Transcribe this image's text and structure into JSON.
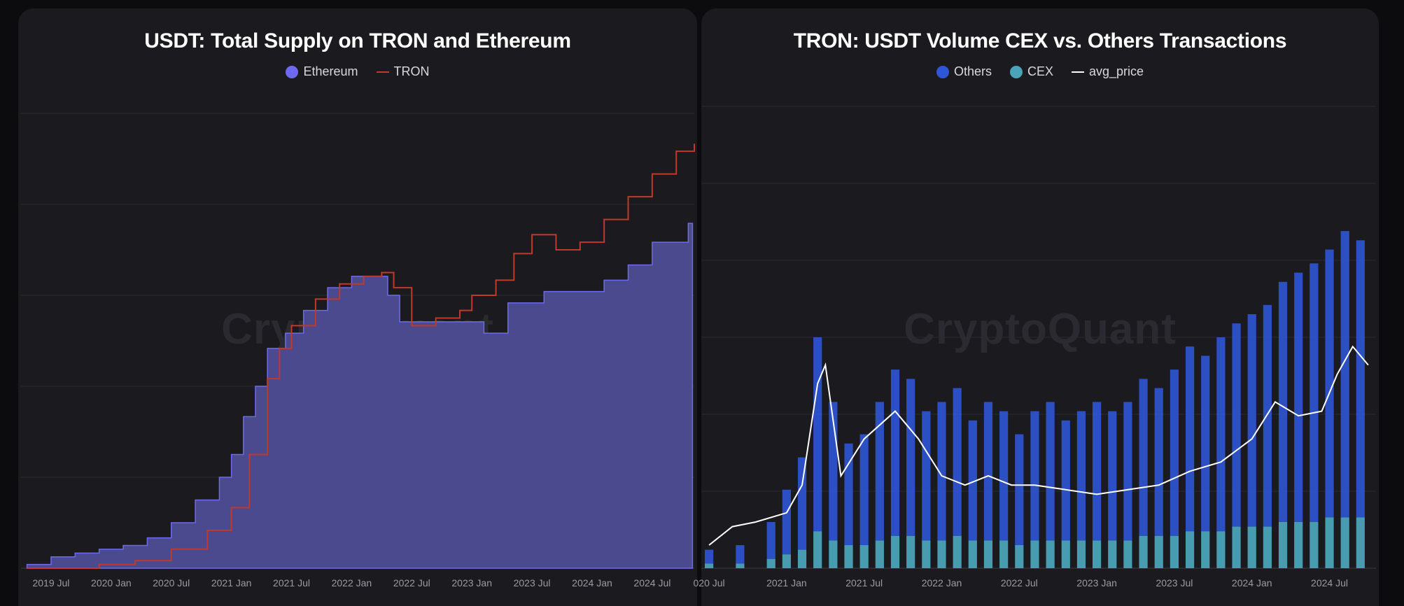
{
  "watermark": "CryptoQuant",
  "chart_data": [
    {
      "type": "area",
      "title": "USDT: Total Supply on TRON and Ethereum",
      "xlabel": "",
      "ylabel": "",
      "x_ticks": [
        "2019 Jul",
        "2020 Jan",
        "2020 Jul",
        "2021 Jan",
        "2021 Jul",
        "2022 Jan",
        "2022 Jul",
        "2023 Jan",
        "2023 Jul",
        "2024 Jan",
        "2024 Jul"
      ],
      "grid": true,
      "legend_placement": "top-center",
      "colors": {
        "Ethereum": "#5b56c8",
        "Ethereum_fill": "#4b4a8f",
        "TRON": "#c0392b"
      },
      "series": [
        {
          "name": "Ethereum",
          "kind": "area",
          "x": [
            2019.3,
            2019.5,
            2019.7,
            2019.9,
            2020.1,
            2020.3,
            2020.5,
            2020.7,
            2020.9,
            2021.0,
            2021.1,
            2021.2,
            2021.3,
            2021.45,
            2021.6,
            2021.8,
            2022.0,
            2022.2,
            2022.3,
            2022.4,
            2022.6,
            2022.8,
            2023.0,
            2023.1,
            2023.3,
            2023.6,
            2023.9,
            2024.1,
            2024.3,
            2024.5,
            2024.8
          ],
          "values": [
            1,
            3,
            4,
            5,
            6,
            8,
            12,
            18,
            24,
            30,
            40,
            48,
            58,
            62,
            68,
            74,
            77,
            77,
            72,
            65,
            65,
            65,
            65,
            62,
            70,
            73,
            73,
            76,
            80,
            86,
            91
          ]
        },
        {
          "name": "TRON",
          "kind": "line",
          "x": [
            2019.3,
            2019.6,
            2019.9,
            2020.2,
            2020.5,
            2020.8,
            2021.0,
            2021.15,
            2021.3,
            2021.4,
            2021.5,
            2021.7,
            2021.9,
            2022.1,
            2022.25,
            2022.35,
            2022.5,
            2022.7,
            2022.9,
            2023.0,
            2023.2,
            2023.35,
            2023.5,
            2023.7,
            2023.9,
            2024.1,
            2024.3,
            2024.5,
            2024.7,
            2024.85
          ],
          "values": [
            0,
            0,
            1,
            2,
            5,
            10,
            16,
            30,
            50,
            58,
            64,
            71,
            75,
            77,
            78,
            74,
            64,
            66,
            68,
            72,
            76,
            83,
            88,
            84,
            86,
            92,
            98,
            104,
            110,
            112
          ]
        }
      ],
      "ylim": [
        0,
        120
      ]
    },
    {
      "type": "bar",
      "title": "TRON: USDT Volume CEX vs. Others Transactions",
      "xlabel": "",
      "ylabel": "",
      "x_ticks": [
        "020 Jul",
        "2021 Jan",
        "2021 Jul",
        "2022 Jan",
        "2022 Jul",
        "2023 Jan",
        "2023 Jul",
        "2024 Jan",
        "2024 Jul"
      ],
      "grid": true,
      "legend_placement": "top-center",
      "colors": {
        "Others": "#2f56d6",
        "CEX": "#4aa3b8",
        "avg_price": "#ffffff"
      },
      "series": [
        {
          "name": "Others",
          "kind": "stacked-bar",
          "x": [
            2020.5,
            2020.7,
            2020.9,
            2021.0,
            2021.1,
            2021.2,
            2021.3,
            2021.4,
            2021.5,
            2021.6,
            2021.7,
            2021.8,
            2021.9,
            2022.0,
            2022.1,
            2022.2,
            2022.3,
            2022.4,
            2022.5,
            2022.6,
            2022.7,
            2022.8,
            2022.9,
            2023.0,
            2023.1,
            2023.2,
            2023.3,
            2023.4,
            2023.5,
            2023.6,
            2023.7,
            2023.8,
            2023.9,
            2024.0,
            2024.1,
            2024.2,
            2024.3,
            2024.4,
            2024.5,
            2024.6,
            2024.7
          ],
          "values": [
            3,
            4,
            8,
            14,
            20,
            42,
            30,
            22,
            24,
            30,
            36,
            34,
            28,
            30,
            32,
            26,
            30,
            28,
            24,
            28,
            30,
            26,
            28,
            30,
            28,
            30,
            34,
            32,
            36,
            40,
            38,
            42,
            44,
            46,
            48,
            52,
            54,
            56,
            58,
            62,
            60
          ]
        },
        {
          "name": "CEX",
          "kind": "stacked-bar",
          "x": [
            2020.5,
            2020.7,
            2020.9,
            2021.0,
            2021.1,
            2021.2,
            2021.3,
            2021.4,
            2021.5,
            2021.6,
            2021.7,
            2021.8,
            2021.9,
            2022.0,
            2022.1,
            2022.2,
            2022.3,
            2022.4,
            2022.5,
            2022.6,
            2022.7,
            2022.8,
            2022.9,
            2023.0,
            2023.1,
            2023.2,
            2023.3,
            2023.4,
            2023.5,
            2023.6,
            2023.7,
            2023.8,
            2023.9,
            2024.0,
            2024.1,
            2024.2,
            2024.3,
            2024.4,
            2024.5,
            2024.6,
            2024.7
          ],
          "values": [
            1,
            1,
            2,
            3,
            4,
            8,
            6,
            5,
            5,
            6,
            7,
            7,
            6,
            6,
            7,
            6,
            6,
            6,
            5,
            6,
            6,
            6,
            6,
            6,
            6,
            6,
            7,
            7,
            7,
            8,
            8,
            8,
            9,
            9,
            9,
            10,
            10,
            10,
            11,
            11,
            11
          ]
        },
        {
          "name": "avg_price",
          "kind": "line",
          "x": [
            2020.5,
            2020.65,
            2020.8,
            2021.0,
            2021.1,
            2021.2,
            2021.25,
            2021.35,
            2021.5,
            2021.7,
            2021.85,
            2022.0,
            2022.15,
            2022.3,
            2022.45,
            2022.6,
            2022.8,
            2023.0,
            2023.2,
            2023.4,
            2023.6,
            2023.8,
            2024.0,
            2024.15,
            2024.3,
            2024.45,
            2024.55,
            2024.65,
            2024.75
          ],
          "values": [
            5,
            9,
            10,
            12,
            18,
            40,
            44,
            20,
            28,
            34,
            28,
            20,
            18,
            20,
            18,
            18,
            17,
            16,
            17,
            18,
            21,
            23,
            28,
            36,
            33,
            34,
            42,
            48,
            44
          ]
        }
      ],
      "ylim": [
        0,
        100
      ]
    }
  ]
}
